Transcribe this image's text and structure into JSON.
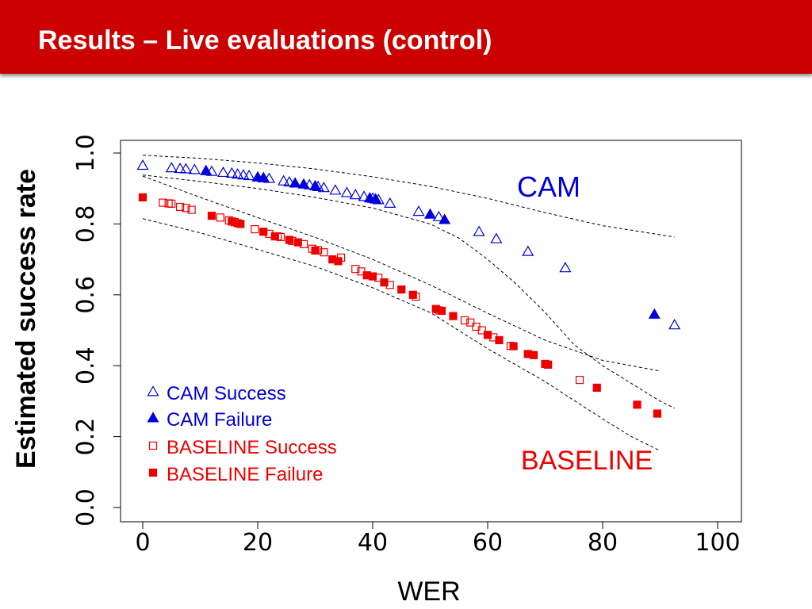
{
  "slide": {
    "title": "Results – Live evaluations (control)"
  },
  "colors": {
    "title_bar": "#cc0000",
    "cam": "#0000dd",
    "baseline": "#ee0000"
  },
  "chart_data": {
    "type": "scatter",
    "xlabel": "WER",
    "ylabel": "Estimated success rate",
    "xlim": [
      0,
      100
    ],
    "ylim": [
      0.0,
      1.0
    ],
    "x_ticks": [
      "0",
      "20",
      "40",
      "60",
      "80",
      "100"
    ],
    "y_ticks": [
      "0.0",
      "0.2",
      "0.4",
      "0.6",
      "0.8",
      "1.0"
    ],
    "grid": false,
    "legend_position": "bottom-left",
    "annotations": [
      "CAM",
      "BASELINE"
    ],
    "series": [
      {
        "name": "CAM Success",
        "marker": "triangle-open",
        "color": "#0000dd",
        "points": [
          [
            0,
            0.965
          ],
          [
            5,
            0.958
          ],
          [
            6.5,
            0.956
          ],
          [
            7.5,
            0.955
          ],
          [
            9,
            0.953
          ],
          [
            12,
            0.948
          ],
          [
            14,
            0.945
          ],
          [
            15.5,
            0.943
          ],
          [
            16.5,
            0.94
          ],
          [
            17.5,
            0.938
          ],
          [
            18.5,
            0.936
          ],
          [
            21,
            0.93
          ],
          [
            22,
            0.928
          ],
          [
            24.5,
            0.921
          ],
          [
            25.5,
            0.918
          ],
          [
            29,
            0.91
          ],
          [
            30.5,
            0.905
          ],
          [
            31.5,
            0.902
          ],
          [
            33.5,
            0.895
          ],
          [
            35.5,
            0.888
          ],
          [
            37,
            0.882
          ],
          [
            38.5,
            0.877
          ],
          [
            40,
            0.872
          ],
          [
            41,
            0.868
          ],
          [
            43,
            0.858
          ],
          [
            48,
            0.835
          ],
          [
            51.5,
            0.82
          ],
          [
            58.5,
            0.778
          ],
          [
            61.5,
            0.758
          ],
          [
            67,
            0.722
          ],
          [
            73.5,
            0.676
          ],
          [
            92.5,
            0.515
          ]
        ]
      },
      {
        "name": "CAM Failure",
        "marker": "triangle-filled",
        "color": "#0000dd",
        "points": [
          [
            11,
            0.95
          ],
          [
            20,
            0.932
          ],
          [
            21,
            0.93
          ],
          [
            26.5,
            0.915
          ],
          [
            28,
            0.912
          ],
          [
            30,
            0.907
          ],
          [
            39.5,
            0.873
          ],
          [
            40.5,
            0.87
          ],
          [
            50,
            0.827
          ],
          [
            52.5,
            0.812
          ],
          [
            89,
            0.545
          ]
        ]
      },
      {
        "name": "BASELINE Success",
        "marker": "square-open",
        "color": "#ee0000",
        "points": [
          [
            3.5,
            0.86
          ],
          [
            4.5,
            0.858
          ],
          [
            5,
            0.857
          ],
          [
            6.5,
            0.848
          ],
          [
            7.5,
            0.845
          ],
          [
            8.5,
            0.84
          ],
          [
            13.5,
            0.818
          ],
          [
            15,
            0.81
          ],
          [
            16,
            0.805
          ],
          [
            19.5,
            0.785
          ],
          [
            22,
            0.772
          ],
          [
            23.5,
            0.765
          ],
          [
            24,
            0.763
          ],
          [
            26,
            0.752
          ],
          [
            28,
            0.743
          ],
          [
            29.5,
            0.73
          ],
          [
            30.5,
            0.726
          ],
          [
            31.5,
            0.72
          ],
          [
            34.5,
            0.705
          ],
          [
            37,
            0.673
          ],
          [
            38,
            0.666
          ],
          [
            41,
            0.648
          ],
          [
            43,
            0.628
          ],
          [
            47.5,
            0.595
          ],
          [
            51.5,
            0.556
          ],
          [
            56,
            0.528
          ],
          [
            57,
            0.522
          ],
          [
            58,
            0.51
          ],
          [
            59,
            0.5
          ],
          [
            61,
            0.48
          ],
          [
            64,
            0.456
          ],
          [
            76,
            0.36
          ]
        ]
      },
      {
        "name": "BASELINE Failure",
        "marker": "square-filled",
        "color": "#ee0000",
        "points": [
          [
            0,
            0.875
          ],
          [
            12,
            0.823
          ],
          [
            15.5,
            0.807
          ],
          [
            16.5,
            0.802
          ],
          [
            17,
            0.8
          ],
          [
            21,
            0.778
          ],
          [
            23,
            0.765
          ],
          [
            25.5,
            0.755
          ],
          [
            27,
            0.748
          ],
          [
            30,
            0.725
          ],
          [
            33,
            0.7
          ],
          [
            34,
            0.695
          ],
          [
            39,
            0.655
          ],
          [
            40,
            0.652
          ],
          [
            42,
            0.635
          ],
          [
            45,
            0.615
          ],
          [
            47,
            0.6
          ],
          [
            51,
            0.56
          ],
          [
            52,
            0.555
          ],
          [
            54,
            0.54
          ],
          [
            60,
            0.487
          ],
          [
            62,
            0.472
          ],
          [
            64.5,
            0.455
          ],
          [
            67,
            0.433
          ],
          [
            68,
            0.43
          ],
          [
            70,
            0.405
          ],
          [
            70.5,
            0.403
          ],
          [
            79,
            0.338
          ],
          [
            86,
            0.29
          ],
          [
            89.5,
            0.265
          ]
        ]
      }
    ],
    "bands": [
      {
        "group": "CAM",
        "color": "#000000",
        "upper": [
          [
            0,
            0.994
          ],
          [
            10,
            0.985
          ],
          [
            20,
            0.972
          ],
          [
            30,
            0.955
          ],
          [
            40,
            0.933
          ],
          [
            50,
            0.906
          ],
          [
            60,
            0.872
          ],
          [
            70,
            0.832
          ],
          [
            80,
            0.795
          ],
          [
            92.5,
            0.763
          ]
        ],
        "lower": [
          [
            0,
            0.938
          ],
          [
            10,
            0.92
          ],
          [
            20,
            0.9
          ],
          [
            30,
            0.875
          ],
          [
            40,
            0.845
          ],
          [
            50,
            0.8
          ],
          [
            55,
            0.76
          ],
          [
            60,
            0.7
          ],
          [
            65,
            0.63
          ],
          [
            70,
            0.55
          ],
          [
            75,
            0.46
          ],
          [
            80,
            0.4
          ],
          [
            85,
            0.35
          ],
          [
            90,
            0.3
          ],
          [
            92.5,
            0.28
          ]
        ]
      },
      {
        "group": "BASELINE",
        "color": "#000000",
        "upper": [
          [
            0,
            0.935
          ],
          [
            10,
            0.875
          ],
          [
            20,
            0.818
          ],
          [
            30,
            0.762
          ],
          [
            40,
            0.7
          ],
          [
            50,
            0.628
          ],
          [
            60,
            0.548
          ],
          [
            70,
            0.472
          ],
          [
            80,
            0.415
          ],
          [
            90,
            0.385
          ]
        ],
        "lower": [
          [
            0,
            0.815
          ],
          [
            10,
            0.775
          ],
          [
            20,
            0.728
          ],
          [
            30,
            0.68
          ],
          [
            40,
            0.62
          ],
          [
            50,
            0.55
          ],
          [
            60,
            0.448
          ],
          [
            70,
            0.355
          ],
          [
            80,
            0.25
          ],
          [
            85,
            0.2
          ],
          [
            90,
            0.16
          ]
        ]
      }
    ]
  }
}
